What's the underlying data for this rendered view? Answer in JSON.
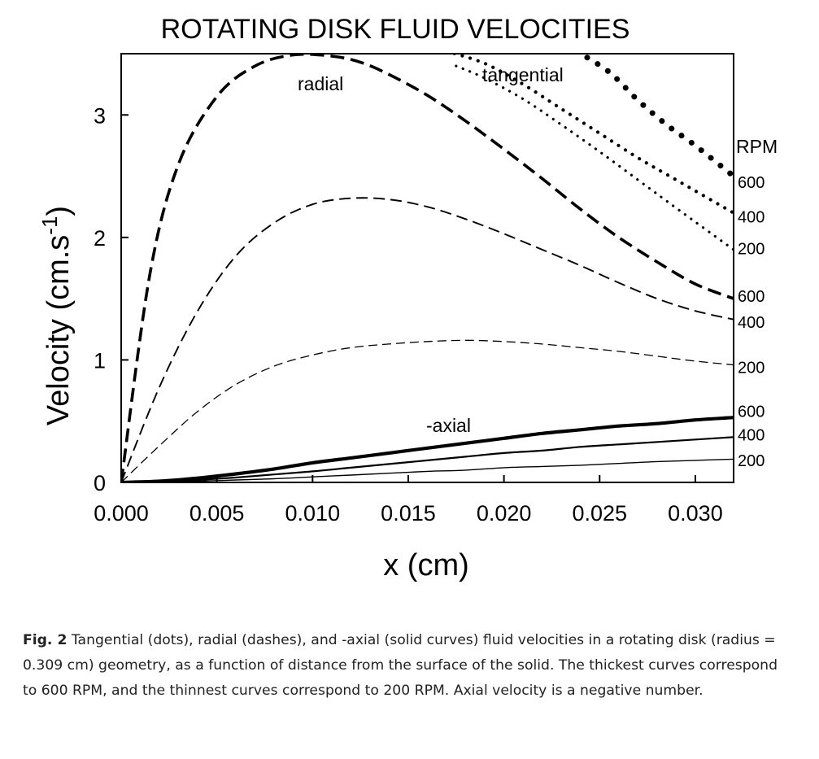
{
  "chart_data": {
    "type": "line",
    "title": "ROTATING DISK FLUID VELOCITIES",
    "xlabel": "x (cm)",
    "ylabel": "Velocity (cm.s",
    "ylabel_sup": "-1",
    "ylabel_close": ")",
    "xlim": [
      0,
      0.032
    ],
    "ylim": [
      0,
      3.5
    ],
    "xticks": [
      "0.000",
      "0.005",
      "0.010",
      "0.015",
      "0.020",
      "0.025",
      "0.030"
    ],
    "xtick_values": [
      0,
      0.005,
      0.01,
      0.015,
      0.02,
      0.025,
      0.03
    ],
    "yticks": [
      "0",
      "1",
      "2",
      "3"
    ],
    "ytick_values": [
      0,
      1,
      2,
      3
    ],
    "grid": false,
    "annotations": {
      "radial": "radial",
      "tangential": "tangential",
      "axial": "-axial",
      "rpm_header": "RPM"
    },
    "series": [
      {
        "group": "tangential",
        "rpm": "600",
        "style": "dots",
        "weight": 3,
        "x": [
          0.0238,
          0.0255,
          0.027,
          0.0285,
          0.03,
          0.032
        ],
        "y": [
          3.52,
          3.35,
          3.12,
          2.92,
          2.75,
          2.5
        ]
      },
      {
        "group": "tangential",
        "rpm": "400",
        "style": "dots",
        "weight": 2,
        "x": [
          0.017,
          0.019,
          0.021,
          0.023,
          0.025,
          0.027,
          0.029,
          0.032
        ],
        "y": [
          3.52,
          3.42,
          3.25,
          3.05,
          2.85,
          2.65,
          2.47,
          2.2
        ]
      },
      {
        "group": "tangential",
        "rpm": "200",
        "style": "dots",
        "weight": 1,
        "x": [
          0.0175,
          0.019,
          0.021,
          0.023,
          0.025,
          0.027,
          0.029,
          0.032
        ],
        "y": [
          3.4,
          3.3,
          3.13,
          2.92,
          2.7,
          2.47,
          2.24,
          1.9
        ]
      },
      {
        "group": "radial",
        "rpm": "600",
        "style": "dashes",
        "weight": 3,
        "x": [
          0,
          0.0015,
          0.003,
          0.005,
          0.007,
          0.009,
          0.011,
          0.0125,
          0.014,
          0.016,
          0.018,
          0.02,
          0.022,
          0.024,
          0.026,
          0.028,
          0.03,
          0.032
        ],
        "y": [
          0,
          1.7,
          2.6,
          3.15,
          3.4,
          3.49,
          3.48,
          3.43,
          3.33,
          3.16,
          2.95,
          2.72,
          2.48,
          2.23,
          2.0,
          1.8,
          1.62,
          1.5
        ]
      },
      {
        "group": "radial",
        "rpm": "400",
        "style": "dashes",
        "weight": 2,
        "x": [
          0,
          0.002,
          0.004,
          0.006,
          0.008,
          0.01,
          0.012,
          0.014,
          0.016,
          0.018,
          0.02,
          0.022,
          0.024,
          0.026,
          0.028,
          0.03,
          0.032
        ],
        "y": [
          0,
          0.78,
          1.4,
          1.85,
          2.12,
          2.27,
          2.32,
          2.31,
          2.25,
          2.15,
          2.03,
          1.9,
          1.77,
          1.63,
          1.5,
          1.4,
          1.33
        ]
      },
      {
        "group": "radial",
        "rpm": "200",
        "style": "dashes",
        "weight": 1,
        "x": [
          0,
          0.002,
          0.004,
          0.006,
          0.008,
          0.01,
          0.012,
          0.014,
          0.016,
          0.018,
          0.02,
          0.022,
          0.024,
          0.026,
          0.028,
          0.03,
          0.032
        ],
        "y": [
          0,
          0.3,
          0.58,
          0.8,
          0.95,
          1.04,
          1.1,
          1.13,
          1.15,
          1.16,
          1.15,
          1.13,
          1.1,
          1.07,
          1.03,
          0.99,
          0.96
        ]
      },
      {
        "group": "axial",
        "rpm": "600",
        "style": "solid",
        "weight": 3,
        "x": [
          0,
          0.002,
          0.004,
          0.006,
          0.008,
          0.01,
          0.012,
          0.014,
          0.016,
          0.018,
          0.02,
          0.022,
          0.024,
          0.026,
          0.028,
          0.03,
          0.032
        ],
        "y": [
          0,
          0.01,
          0.035,
          0.07,
          0.11,
          0.16,
          0.2,
          0.24,
          0.28,
          0.32,
          0.36,
          0.4,
          0.43,
          0.46,
          0.48,
          0.51,
          0.53
        ]
      },
      {
        "group": "axial",
        "rpm": "400",
        "style": "solid",
        "weight": 2,
        "x": [
          0,
          0.002,
          0.004,
          0.006,
          0.008,
          0.01,
          0.012,
          0.014,
          0.016,
          0.018,
          0.02,
          0.022,
          0.024,
          0.026,
          0.028,
          0.03,
          0.032
        ],
        "y": [
          0,
          0.006,
          0.02,
          0.04,
          0.065,
          0.09,
          0.12,
          0.15,
          0.18,
          0.21,
          0.24,
          0.26,
          0.29,
          0.31,
          0.33,
          0.35,
          0.37
        ]
      },
      {
        "group": "axial",
        "rpm": "200",
        "style": "solid",
        "weight": 1,
        "x": [
          0,
          0.002,
          0.004,
          0.006,
          0.008,
          0.01,
          0.012,
          0.014,
          0.016,
          0.018,
          0.02,
          0.022,
          0.024,
          0.026,
          0.028,
          0.03,
          0.032
        ],
        "y": [
          0,
          0.003,
          0.01,
          0.02,
          0.03,
          0.045,
          0.06,
          0.075,
          0.09,
          0.1,
          0.12,
          0.13,
          0.14,
          0.155,
          0.17,
          0.18,
          0.19
        ]
      }
    ],
    "rpm_labels": [
      {
        "text": "600",
        "y": 2.45
      },
      {
        "text": "400",
        "y": 2.17
      },
      {
        "text": "200",
        "y": 1.91
      },
      {
        "text": "600",
        "y": 1.52
      },
      {
        "text": "400",
        "y": 1.31
      },
      {
        "text": "200",
        "y": 0.94
      },
      {
        "text": "600",
        "y": 0.58
      },
      {
        "text": "400",
        "y": 0.39
      },
      {
        "text": "200",
        "y": 0.18
      }
    ]
  },
  "caption": {
    "label": "Fig. 2",
    "text": " Tangential (dots), radial (dashes), and -axial (solid curves) fluid velocities in a rotating disk (radius = 0.309 cm) geometry, as a function of distance from the surface of the solid.  The thickest curves correspond to 600 RPM, and the thinnest curves correspond to 200 RPM.  Axial velocity is a negative number."
  }
}
